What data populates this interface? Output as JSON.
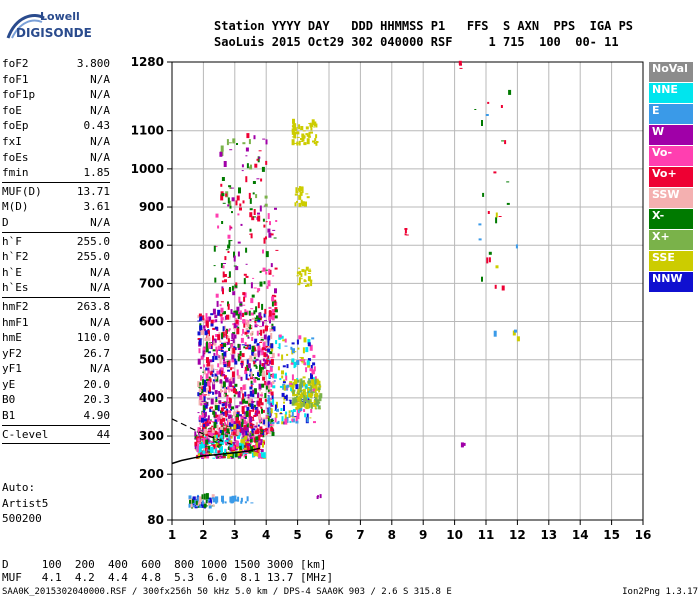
{
  "logo": {
    "line1": "Lowell",
    "line2": "DIGISONDE"
  },
  "header": {
    "labels": "Station YYYY DAY   DDD HHMMSS P1   FFS  S AXN  PPS  IGA PS",
    "values": "SaoLuis 2015 Oct29 302 040000 RSF     1 715  100  00- 11"
  },
  "params": [
    {
      "name": "foF2",
      "value": "3.800"
    },
    {
      "name": "foF1",
      "value": "N/A"
    },
    {
      "name": "foF1p",
      "value": "N/A"
    },
    {
      "name": "foE",
      "value": "N/A"
    },
    {
      "name": "foEp",
      "value": "0.43"
    },
    {
      "name": "fxI",
      "value": "N/A"
    },
    {
      "name": "foEs",
      "value": "N/A"
    },
    {
      "name": "fmin",
      "value": "1.85"
    },
    {
      "sep": true
    },
    {
      "name": "MUF(D)",
      "value": "13.71"
    },
    {
      "name": "M(D)",
      "value": "3.61"
    },
    {
      "name": "D",
      "value": "N/A"
    },
    {
      "sep": true
    },
    {
      "name": "h`F",
      "value": "255.0"
    },
    {
      "name": "h`F2",
      "value": "255.0"
    },
    {
      "name": "h`E",
      "value": "N/A"
    },
    {
      "name": "h`Es",
      "value": "N/A"
    },
    {
      "sep": true
    },
    {
      "name": "hmF2",
      "value": "263.8"
    },
    {
      "name": "hmF1",
      "value": "N/A"
    },
    {
      "name": "hmE",
      "value": "110.0"
    },
    {
      "name": "yF2",
      "value": "26.7"
    },
    {
      "name": "yF1",
      "value": "N/A"
    },
    {
      "name": "yE",
      "value": "20.0"
    },
    {
      "name": "B0",
      "value": "20.3"
    },
    {
      "name": "B1",
      "value": "4.90"
    },
    {
      "sep": true
    },
    {
      "name": "C-level",
      "value": "44"
    },
    {
      "sep": true
    }
  ],
  "auto": [
    "Auto:",
    "Artist5",
    "500200"
  ],
  "muf_table": {
    "d_row": "D     100  200  400  600  800 1000 1500 3000 [km]",
    "muf_row": "MUF   4.1  4.2  4.4  4.8  5.3  6.0  8.1 13.7 [MHz]"
  },
  "footer": {
    "left": "SAA0K_2015302040000.RSF / 300fx256h 50 kHz 5.0 km / DPS-4 SAA0K 903 / 2.6 S 315.8 E",
    "right": "Ion2Png 1.3.17"
  },
  "legend": [
    {
      "label": "NoVal",
      "color": "#8c8c8c"
    },
    {
      "label": "NNE",
      "color": "#00e5ee"
    },
    {
      "label": "E",
      "color": "#3a9ae8"
    },
    {
      "label": "W",
      "color": "#a000a8"
    },
    {
      "label": "Vo-",
      "color": "#ff3fb0"
    },
    {
      "label": "Vo+",
      "color": "#ee0033"
    },
    {
      "label": "SSW",
      "color": "#f4b0b0"
    },
    {
      "label": "X-",
      "color": "#007a00"
    },
    {
      "label": "X+",
      "color": "#7ab24a"
    },
    {
      "label": "SSE",
      "color": "#cccc00"
    },
    {
      "label": "NNW",
      "color": "#1010d0"
    }
  ],
  "chart_data": {
    "type": "scatter",
    "title": "",
    "xlabel": "",
    "ylabel": "",
    "xlim": [
      1,
      16
    ],
    "ylim": [
      80,
      1280
    ],
    "xticks": [
      1,
      2,
      3,
      4,
      5,
      6,
      7,
      8,
      9,
      10,
      11,
      12,
      13,
      14,
      15,
      16
    ],
    "yticks": [
      80,
      200,
      300,
      400,
      500,
      600,
      700,
      800,
      900,
      1000,
      1100,
      1280
    ],
    "grid": true,
    "trace": {
      "f": [
        1.0,
        1.3,
        1.7,
        2.0,
        2.5,
        3.0,
        3.4,
        3.8
      ],
      "h": [
        228,
        236,
        243,
        248,
        252,
        256,
        260,
        268
      ]
    },
    "trace_dashed": {
      "f": [
        1.0,
        1.5,
        2.0,
        2.5,
        2.9
      ],
      "h": [
        345,
        325,
        305,
        290,
        278
      ]
    },
    "clusters": [
      {
        "f": [
          1.7,
          3.9
        ],
        "h": [
          240,
          320
        ],
        "n": 420,
        "legend": [
          "X-",
          "Vo-",
          "W",
          "SSE",
          "Vo+",
          "NNE"
        ]
      },
      {
        "f": [
          1.8,
          4.2
        ],
        "h": [
          300,
          620
        ],
        "n": 900,
        "legend": [
          "Vo-",
          "Vo+",
          "W",
          "NNW",
          "X-",
          "SSW"
        ]
      },
      {
        "f": [
          2.3,
          4.3
        ],
        "h": [
          600,
          900
        ],
        "n": 160,
        "legend": [
          "Vo-",
          "Vo+",
          "W",
          "X-"
        ]
      },
      {
        "f": [
          2.5,
          4.0
        ],
        "h": [
          900,
          1100
        ],
        "n": 60,
        "legend": [
          "X-",
          "Vo+",
          "W",
          "X+"
        ]
      },
      {
        "f": [
          4.0,
          5.6
        ],
        "h": [
          330,
          560
        ],
        "n": 200,
        "legend": [
          "NNW",
          "SSE",
          "NNE",
          "Vo-",
          "E"
        ]
      },
      {
        "f": [
          4.8,
          5.7
        ],
        "h": [
          370,
          440
        ],
        "n": 140,
        "legend": [
          "SSE",
          "X+"
        ]
      },
      {
        "f": [
          4.8,
          5.6
        ],
        "h": [
          1060,
          1125
        ],
        "n": 60,
        "legend": [
          "SSE"
        ]
      },
      {
        "f": [
          4.9,
          5.4
        ],
        "h": [
          690,
          740
        ],
        "n": 25,
        "legend": [
          "SSE"
        ]
      },
      {
        "f": [
          4.9,
          5.3
        ],
        "h": [
          900,
          960
        ],
        "n": 18,
        "legend": [
          "SSE"
        ]
      },
      {
        "f": [
          1.5,
          2.3
        ],
        "h": [
          110,
          135
        ],
        "n": 60,
        "legend": [
          "NNW",
          "E",
          "X-",
          "SSW"
        ]
      },
      {
        "f": [
          2.3,
          3.5
        ],
        "h": [
          122,
          130
        ],
        "n": 25,
        "legend": [
          "E"
        ]
      },
      {
        "f": [
          10.6,
          12.0
        ],
        "h": [
          540,
          1280
        ],
        "n": 30,
        "legend": [
          "E",
          "X-",
          "SSE",
          "Vo+"
        ]
      },
      {
        "f": [
          8.4,
          8.6
        ],
        "h": [
          825,
          840
        ],
        "n": 4,
        "legend": [
          "Vo+"
        ]
      },
      {
        "f": [
          10.1,
          10.2
        ],
        "h": [
          1260,
          1275
        ],
        "n": 3,
        "legend": [
          "Vo+"
        ]
      },
      {
        "f": [
          10.2,
          10.3
        ],
        "h": [
          270,
          280
        ],
        "n": 2,
        "legend": [
          "W"
        ]
      },
      {
        "f": [
          5.6,
          5.8
        ],
        "h": [
          135,
          140
        ],
        "n": 3,
        "legend": [
          "W"
        ]
      }
    ]
  }
}
